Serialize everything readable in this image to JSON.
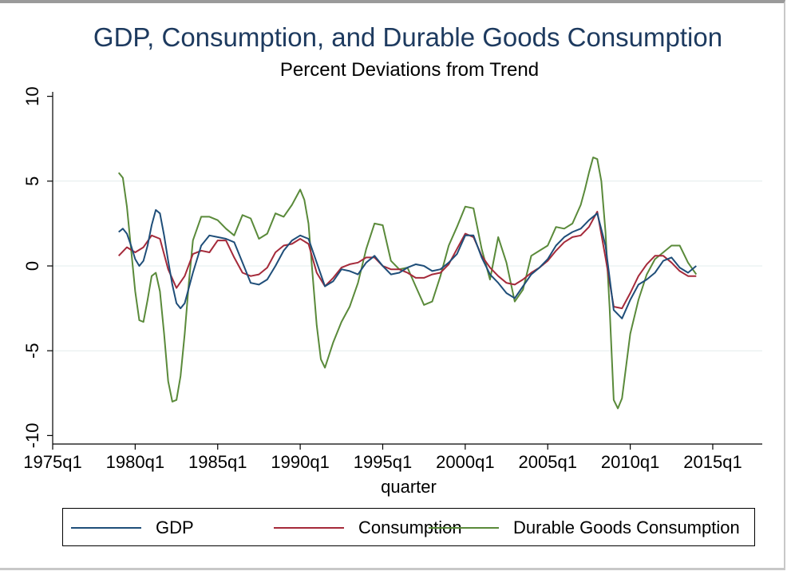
{
  "chart_data": {
    "type": "line",
    "title": "GDP, Consumption, and Durable Goods Consumption",
    "subtitle": "Percent Deviations from Trend",
    "xlabel": "quarter",
    "ylabel": "",
    "xlim": [
      1975,
      2018
    ],
    "ylim": [
      -10.5,
      10.5
    ],
    "x_ticks": [
      1975,
      1980,
      1985,
      1990,
      1995,
      2000,
      2005,
      2010,
      2015
    ],
    "x_tick_labels": [
      "1975q1",
      "1980q1",
      "1985q1",
      "1990q1",
      "1995q1",
      "2000q1",
      "2005q1",
      "2010q1",
      "2015q1"
    ],
    "y_ticks": [
      -10,
      -5,
      0,
      5,
      10
    ],
    "y_tick_labels": [
      "-10",
      "-5",
      "0",
      "5",
      "10"
    ],
    "grid": true,
    "legend_position": "bottom",
    "series": [
      {
        "name": "GDP",
        "color": "#1f4e79",
        "x": [
          1979.0,
          1979.25,
          1979.5,
          1979.75,
          1980.0,
          1980.25,
          1980.5,
          1980.75,
          1981.0,
          1981.25,
          1981.5,
          1981.75,
          1982.0,
          1982.25,
          1982.5,
          1982.75,
          1983.0,
          1983.5,
          1984.0,
          1984.5,
          1985.0,
          1985.5,
          1986.0,
          1986.5,
          1987.0,
          1987.5,
          1988.0,
          1988.5,
          1989.0,
          1989.5,
          1990.0,
          1990.5,
          1991.0,
          1991.5,
          1992.0,
          1992.5,
          1993.0,
          1993.5,
          1994.0,
          1994.5,
          1995.0,
          1995.5,
          1996.0,
          1996.5,
          1997.0,
          1997.5,
          1998.0,
          1998.5,
          1999.0,
          1999.5,
          2000.0,
          2000.5,
          2001.0,
          2001.5,
          2002.0,
          2002.5,
          2003.0,
          2003.5,
          2004.0,
          2004.5,
          2005.0,
          2005.5,
          2006.0,
          2006.5,
          2007.0,
          2007.5,
          2008.0,
          2008.5,
          2009.0,
          2009.5,
          2010.0,
          2010.5,
          2011.0,
          2011.5,
          2012.0,
          2012.5,
          2013.0,
          2013.5,
          2014.0
        ],
        "y": [
          2.0,
          2.2,
          1.9,
          1.2,
          0.4,
          0.0,
          0.3,
          1.2,
          2.4,
          3.3,
          3.1,
          1.8,
          0.3,
          -1.1,
          -2.2,
          -2.5,
          -2.2,
          -0.4,
          1.2,
          1.8,
          1.7,
          1.6,
          1.4,
          0.2,
          -1.0,
          -1.1,
          -0.8,
          0.0,
          0.9,
          1.5,
          1.8,
          1.6,
          0.2,
          -1.2,
          -0.9,
          -0.2,
          -0.3,
          -0.5,
          0.2,
          0.6,
          0.0,
          -0.5,
          -0.4,
          -0.1,
          0.1,
          0.0,
          -0.3,
          -0.2,
          0.2,
          0.7,
          1.8,
          1.8,
          0.5,
          -0.5,
          -1.0,
          -1.6,
          -1.9,
          -1.2,
          -0.5,
          -0.1,
          0.4,
          1.2,
          1.7,
          2.0,
          2.2,
          2.7,
          3.1,
          1.2,
          -2.6,
          -3.1,
          -2.0,
          -1.1,
          -0.8,
          -0.4,
          0.3,
          0.5,
          -0.1,
          -0.4,
          0.0
        ]
      },
      {
        "name": "Consumption",
        "color": "#a52a3a",
        "x": [
          1979.0,
          1979.5,
          1980.0,
          1980.5,
          1981.0,
          1981.5,
          1982.0,
          1982.5,
          1983.0,
          1983.5,
          1984.0,
          1984.5,
          1985.0,
          1985.5,
          1986.0,
          1986.5,
          1987.0,
          1987.5,
          1988.0,
          1988.5,
          1989.0,
          1989.5,
          1990.0,
          1990.5,
          1991.0,
          1991.5,
          1992.0,
          1992.5,
          1993.0,
          1993.5,
          1994.0,
          1994.5,
          1995.0,
          1995.5,
          1996.0,
          1996.5,
          1997.0,
          1997.5,
          1998.0,
          1998.5,
          1999.0,
          1999.5,
          2000.0,
          2000.5,
          2001.0,
          2001.5,
          2002.0,
          2002.5,
          2003.0,
          2003.5,
          2004.0,
          2004.5,
          2005.0,
          2005.5,
          2006.0,
          2006.5,
          2007.0,
          2007.5,
          2008.0,
          2008.5,
          2009.0,
          2009.5,
          2010.0,
          2010.5,
          2011.0,
          2011.5,
          2012.0,
          2012.5,
          2013.0,
          2013.5,
          2014.0
        ],
        "y": [
          0.6,
          1.1,
          0.8,
          1.1,
          1.8,
          1.6,
          -0.2,
          -1.3,
          -0.6,
          0.7,
          0.9,
          0.8,
          1.5,
          1.5,
          0.5,
          -0.4,
          -0.6,
          -0.5,
          -0.1,
          0.8,
          1.2,
          1.3,
          1.6,
          1.3,
          -0.4,
          -1.2,
          -0.7,
          -0.1,
          0.1,
          0.2,
          0.5,
          0.5,
          0.0,
          -0.2,
          -0.2,
          -0.4,
          -0.7,
          -0.7,
          -0.5,
          -0.4,
          0.1,
          1.0,
          1.9,
          1.7,
          0.6,
          -0.1,
          -0.6,
          -1.0,
          -1.1,
          -0.8,
          -0.4,
          -0.1,
          0.3,
          0.9,
          1.4,
          1.7,
          1.8,
          2.3,
          3.2,
          0.5,
          -2.4,
          -2.5,
          -1.6,
          -0.6,
          0.1,
          0.6,
          0.6,
          0.2,
          -0.3,
          -0.6,
          -0.6
        ]
      },
      {
        "name": "Durable Goods Consumption",
        "color": "#5a8a3a",
        "x": [
          1979.0,
          1979.25,
          1979.5,
          1979.75,
          1980.0,
          1980.25,
          1980.5,
          1980.75,
          1981.0,
          1981.25,
          1981.5,
          1981.75,
          1982.0,
          1982.25,
          1982.5,
          1982.75,
          1983.0,
          1983.25,
          1983.5,
          1984.0,
          1984.5,
          1985.0,
          1985.5,
          1986.0,
          1986.5,
          1987.0,
          1987.5,
          1988.0,
          1988.5,
          1989.0,
          1989.5,
          1990.0,
          1990.25,
          1990.5,
          1990.75,
          1991.0,
          1991.25,
          1991.5,
          1992.0,
          1992.5,
          1993.0,
          1993.5,
          1994.0,
          1994.5,
          1995.0,
          1995.5,
          1996.0,
          1996.5,
          1997.0,
          1997.5,
          1998.0,
          1998.5,
          1999.0,
          1999.5,
          2000.0,
          2000.5,
          2001.0,
          2001.5,
          2002.0,
          2002.5,
          2003.0,
          2003.5,
          2004.0,
          2004.5,
          2005.0,
          2005.5,
          2006.0,
          2006.5,
          2007.0,
          2007.25,
          2007.5,
          2007.75,
          2008.0,
          2008.25,
          2008.5,
          2008.75,
          2009.0,
          2009.25,
          2009.5,
          2010.0,
          2010.5,
          2011.0,
          2011.5,
          2012.0,
          2012.5,
          2013.0,
          2013.5,
          2014.0
        ],
        "y": [
          5.5,
          5.2,
          3.5,
          1.0,
          -1.5,
          -3.2,
          -3.3,
          -2.0,
          -0.6,
          -0.4,
          -1.5,
          -4.0,
          -6.8,
          -8.0,
          -7.9,
          -6.5,
          -4.0,
          -1.0,
          1.5,
          2.9,
          2.9,
          2.7,
          2.2,
          1.8,
          3.0,
          2.8,
          1.6,
          1.9,
          3.1,
          2.9,
          3.6,
          4.5,
          3.9,
          2.5,
          -0.5,
          -3.5,
          -5.5,
          -6.0,
          -4.5,
          -3.3,
          -2.4,
          -1.0,
          1.0,
          2.5,
          2.4,
          0.3,
          -0.2,
          -0.1,
          -1.2,
          -2.3,
          -2.1,
          -0.6,
          1.2,
          2.3,
          3.5,
          3.4,
          1.0,
          -0.8,
          1.7,
          0.2,
          -2.1,
          -1.4,
          0.6,
          0.9,
          1.2,
          2.3,
          2.2,
          2.5,
          3.6,
          4.5,
          5.5,
          6.4,
          6.3,
          5.0,
          2.0,
          -2.5,
          -7.9,
          -8.4,
          -7.8,
          -4.0,
          -2.0,
          -0.5,
          0.4,
          0.8,
          1.2,
          1.2,
          0.2,
          -0.5
        ]
      }
    ]
  }
}
